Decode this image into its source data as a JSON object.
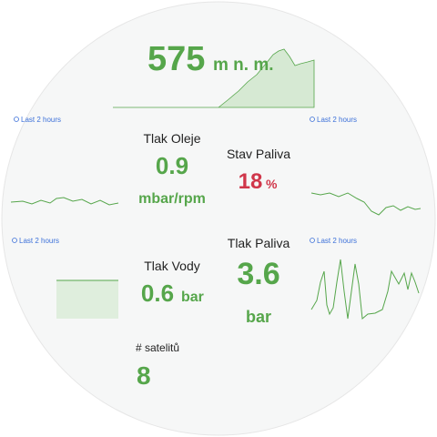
{
  "altitude": {
    "value": "575",
    "unit": "m n. m."
  },
  "oil_pressure": {
    "title": "Tlak Oleje",
    "value": "0.9",
    "unit": "mbar/rpm"
  },
  "fuel_level": {
    "title": "Stav Paliva",
    "value": "18",
    "unit": "%"
  },
  "fuel_pressure": {
    "title": "Tlak Paliva",
    "value": "3.6",
    "unit": "bar"
  },
  "water_pressure": {
    "title": "Tlak Vody",
    "value": "0.6",
    "unit": "bar"
  },
  "satellites": {
    "title": "# satelitů",
    "value": "8"
  },
  "time_ranges": [
    "Last 2 hours",
    "Last 2 hours",
    "Last 2 hours",
    "Last 2 hours"
  ]
}
